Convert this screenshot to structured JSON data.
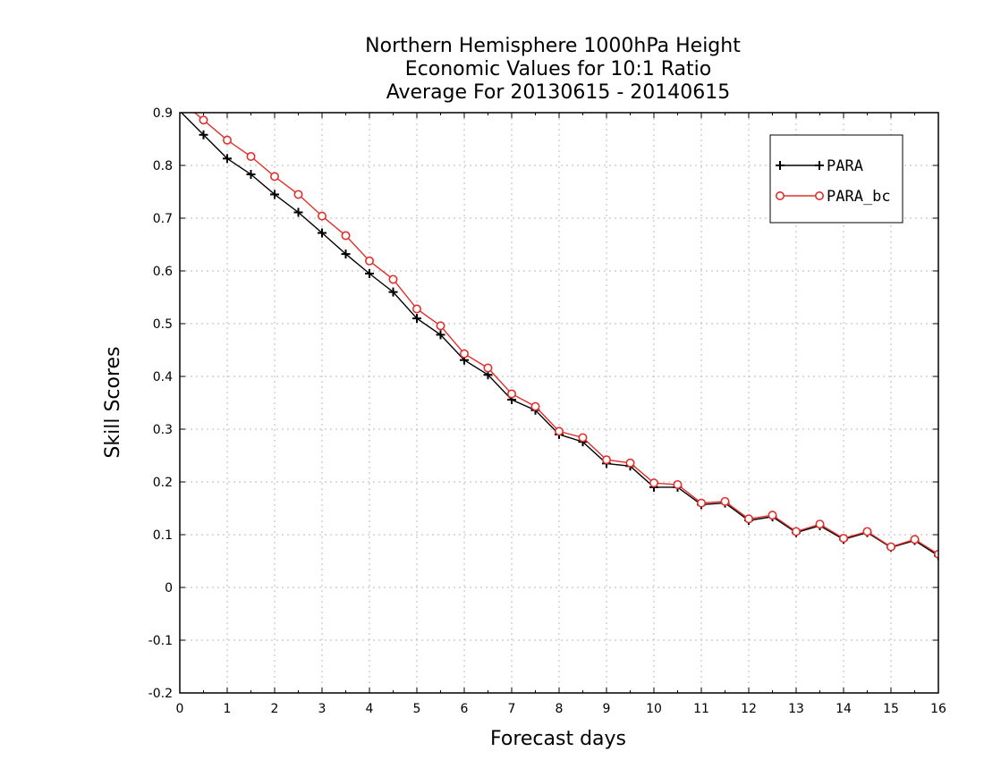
{
  "chart_data": {
    "type": "line",
    "title_lines": [
      "Northern Hemisphere 1000hPa Height",
      "Economic Values for 10:1 Ratio",
      "Average For 20130615 - 20140615"
    ],
    "xlabel": "Forecast days",
    "ylabel": "Skill Scores",
    "xlim": [
      0,
      16
    ],
    "ylim": [
      -0.2,
      0.9
    ],
    "x_ticks": [
      "0",
      "1",
      "2",
      "3",
      "4",
      "5",
      "6",
      "7",
      "8",
      "9",
      "10",
      "11",
      "12",
      "13",
      "14",
      "15",
      "16"
    ],
    "y_ticks": [
      "0.9",
      "0.8",
      "0.7",
      "0.6",
      "0.5",
      "0.4",
      "0.3",
      "0.2",
      "0.1",
      "0",
      "-0.1",
      "-0.2"
    ],
    "grid": true,
    "legend_position": "top-right",
    "series": [
      {
        "name": "PARA",
        "color": "#000000",
        "marker": "plus",
        "x": [
          0.5,
          1,
          1.5,
          2,
          2.5,
          3,
          3.5,
          4,
          4.5,
          5,
          5.5,
          6,
          6.5,
          7,
          7.5,
          8,
          8.5,
          9,
          9.5,
          10,
          10.5,
          11,
          11.5,
          12,
          12.5,
          13,
          13.5,
          14,
          14.5,
          15,
          15.5,
          16
        ],
        "values": [
          0.858,
          0.813,
          0.783,
          0.745,
          0.711,
          0.672,
          0.632,
          0.595,
          0.56,
          0.51,
          0.479,
          0.431,
          0.403,
          0.356,
          0.336,
          0.29,
          0.276,
          0.235,
          0.23,
          0.19,
          0.19,
          0.157,
          0.16,
          0.127,
          0.134,
          0.104,
          0.117,
          0.091,
          0.104,
          0.076,
          0.089,
          0.06
        ]
      },
      {
        "name": "PARA_bc",
        "color": "#e0302c",
        "marker": "circle",
        "x": [
          0.5,
          1,
          1.5,
          2,
          2.5,
          3,
          3.5,
          4,
          4.5,
          5,
          5.5,
          6,
          6.5,
          7,
          7.5,
          8,
          8.5,
          9,
          9.5,
          10,
          10.5,
          11,
          11.5,
          12,
          12.5,
          13,
          13.5,
          14,
          14.5,
          15,
          15.5,
          16
        ],
        "values": [
          0.886,
          0.848,
          0.817,
          0.779,
          0.745,
          0.704,
          0.667,
          0.619,
          0.584,
          0.528,
          0.496,
          0.443,
          0.416,
          0.367,
          0.343,
          0.296,
          0.284,
          0.242,
          0.236,
          0.198,
          0.195,
          0.16,
          0.163,
          0.13,
          0.137,
          0.106,
          0.12,
          0.093,
          0.106,
          0.077,
          0.091,
          0.063
        ]
      }
    ]
  }
}
